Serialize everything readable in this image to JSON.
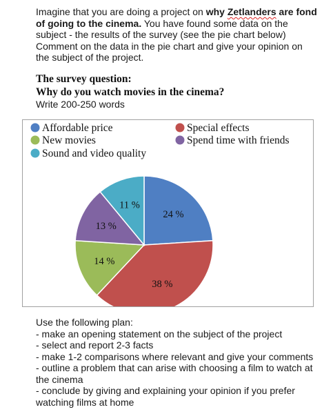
{
  "intro": {
    "part1": "Imagine that you are doing a project on ",
    "bold1": "why ",
    "bold_name": "Zetlanders",
    "bold2": " are fond of going to the cinema.",
    "part2": " You have found some data on the subject - the results of the survey (see the pie chart below) Comment on the data in the pie chart and give your opinion on the subject of the project."
  },
  "question_label": "The survey question:",
  "question_text": "Why do you watch movies in the cinema?",
  "word_count": "Write 200-250 words",
  "chart_data": {
    "type": "pie",
    "title": "",
    "legend_position": "top",
    "series": [
      {
        "name": "Affordable price",
        "value": 24,
        "label": "24 %",
        "color": "#4f7fc3"
      },
      {
        "name": "Special effects",
        "value": 38,
        "label": "38 %",
        "color": "#c0504d"
      },
      {
        "name": "New movies",
        "value": 14,
        "label": "14 %",
        "color": "#9bbb59"
      },
      {
        "name": "Spend time with friends",
        "value": 13,
        "label": "13 %",
        "color": "#8064a2"
      },
      {
        "name": "Sound and video quality",
        "value": 11,
        "label": "11 %",
        "color": "#4bacc6"
      }
    ]
  },
  "plan": {
    "heading": "Use the following plan:",
    "items": [
      "- make an opening statement on the subject of the project",
      "- select and report 2-3 facts",
      "- make 1-2 comparisons where relevant and give your comments",
      "- outline a problem that can arise with choosing a film to watch at the cinema",
      "- conclude by giving and explaining your opinion if you prefer watching films at home"
    ]
  }
}
